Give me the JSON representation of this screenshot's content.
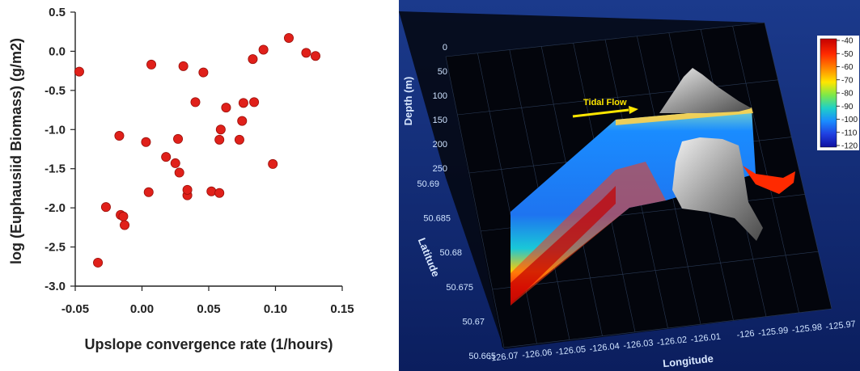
{
  "chart_data": [
    {
      "type": "scatter",
      "xlabel": "Upslope convergence rate (1/hours)",
      "ylabel": "log (Euphausiid Biomass) (g/m2)",
      "xlim": [
        -0.05,
        0.15
      ],
      "ylim": [
        -3.0,
        0.5
      ],
      "xticks": [
        "-0.05",
        "0.00",
        "0.05",
        "0.10",
        "0.15"
      ],
      "yticks": [
        "0.5",
        "0.0",
        "-0.5",
        "-1.0",
        "-1.5",
        "-2.0",
        "-2.5",
        "-3.0"
      ],
      "marker_color": "#e0201a",
      "grid": false,
      "points": [
        [
          -0.047,
          -0.26
        ],
        [
          -0.033,
          -2.7
        ],
        [
          -0.027,
          -1.99
        ],
        [
          -0.017,
          -1.08
        ],
        [
          -0.016,
          -2.09
        ],
        [
          -0.014,
          -2.11
        ],
        [
          -0.013,
          -2.22
        ],
        [
          0.003,
          -1.16
        ],
        [
          0.005,
          -1.8
        ],
        [
          0.007,
          -0.17
        ],
        [
          0.018,
          -1.35
        ],
        [
          0.025,
          -1.43
        ],
        [
          0.027,
          -1.12
        ],
        [
          0.028,
          -1.55
        ],
        [
          0.031,
          -0.19
        ],
        [
          0.034,
          -1.84
        ],
        [
          0.034,
          -1.77
        ],
        [
          0.04,
          -0.65
        ],
        [
          0.046,
          -0.27
        ],
        [
          0.052,
          -1.79
        ],
        [
          0.058,
          -1.81
        ],
        [
          0.058,
          -1.13
        ],
        [
          0.059,
          -1.0
        ],
        [
          0.063,
          -0.72
        ],
        [
          0.073,
          -1.13
        ],
        [
          0.075,
          -0.89
        ],
        [
          0.076,
          -0.66
        ],
        [
          0.083,
          -0.1
        ],
        [
          0.084,
          -0.65
        ],
        [
          0.091,
          0.02
        ],
        [
          0.098,
          -1.44
        ],
        [
          0.11,
          0.17
        ],
        [
          0.123,
          -0.02
        ],
        [
          0.13,
          -0.06
        ]
      ]
    },
    {
      "type": "heatmap",
      "zlabel": "Depth (m)",
      "ylabel": "Latitude",
      "xlabel": "Longitude",
      "depth_ticks": [
        "0",
        "50",
        "100",
        "150",
        "200",
        "250"
      ],
      "latitude_ticks": [
        "50.69",
        "50.685",
        "50.68",
        "50.675",
        "50.67",
        "50.665"
      ],
      "longitude_ticks": [
        "-126.07",
        "-126.06",
        "-126.05",
        "-126.04",
        "-126.03",
        "-126.02",
        "-126.01",
        "-126",
        "-125.99",
        "-125.98",
        "-125.97"
      ],
      "colorbar_ticks": [
        "-40",
        "-50",
        "-60",
        "-70",
        "-80",
        "-90",
        "-100",
        "-110",
        "-120"
      ],
      "annotation": "Tidal Flow",
      "background_color": "#0a1f66",
      "colormap": [
        "#c40000",
        "#ff2a00",
        "#ff8c00",
        "#ffe600",
        "#7de84a",
        "#1fd0c8",
        "#1a8cff",
        "#2040e0",
        "#1010a0"
      ]
    }
  ]
}
